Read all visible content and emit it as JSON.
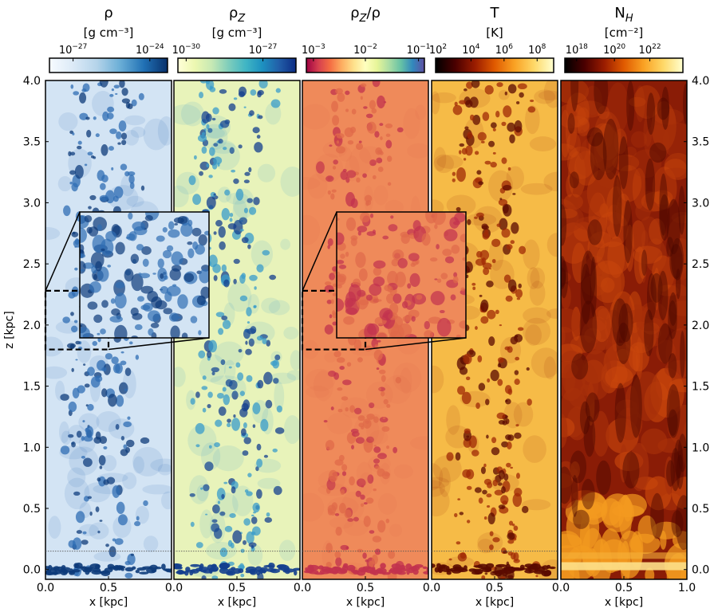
{
  "chart_data": {
    "type": "heatmap",
    "shared_axes": {
      "xlabel": "x [kpc]",
      "ylabel": "z [kpc]",
      "xlim": [
        0.0,
        1.0
      ],
      "ylim": [
        -0.08,
        4.0
      ],
      "x_ticks": [
        "0.0",
        "0.5"
      ],
      "x_ticks_last": [
        "0.0",
        "0.5",
        "1.0"
      ],
      "y_ticks": [
        {
          "value": 0.0,
          "label": "0.0"
        },
        {
          "value": 0.5,
          "label": "0.5"
        },
        {
          "value": 1.0,
          "label": "1.0"
        },
        {
          "value": 1.5,
          "label": "1.5"
        },
        {
          "value": 2.0,
          "label": "2.0"
        },
        {
          "value": 2.5,
          "label": "2.5"
        },
        {
          "value": 3.0,
          "label": "3.0"
        },
        {
          "value": 3.5,
          "label": "3.5"
        },
        {
          "value": 4.0,
          "label": "4.0"
        }
      ],
      "reference_line_z": 0.15
    },
    "zoom_box_region": {
      "x": [
        0.0,
        0.5
      ],
      "z": [
        1.8,
        2.28
      ]
    },
    "panels": [
      {
        "title": "ρ",
        "unit": "[g cm⁻³]",
        "colorbar_ticks": [
          {
            "base": "10",
            "exp": "−27",
            "pos": 0.2
          },
          {
            "base": "10",
            "exp": "−24",
            "pos": 0.85
          }
        ],
        "colormap": [
          "#f7fbff",
          "#dceaf7",
          "#b5d4ea",
          "#6aaed6",
          "#2171b5",
          "#08306b"
        ],
        "colors": {
          "background": "#d3e4f4",
          "clump": "#2f6eb4",
          "clump_dark": "#0d3b7a"
        },
        "has_inset": true
      },
      {
        "title": "ρ_Z",
        "unit": "[g cm⁻³]",
        "colorbar_ticks": [
          {
            "base": "10",
            "exp": "−30",
            "pos": 0.07
          },
          {
            "base": "10",
            "exp": "−27",
            "pos": 0.72
          }
        ],
        "colormap": [
          "#ffffd9",
          "#edf8b1",
          "#c7e9b4",
          "#7fcdbb",
          "#41b6c4",
          "#1d91c0",
          "#225ea8",
          "#0c2c84"
        ],
        "colors": {
          "background": "#e8f3ba",
          "clump": "#3a9ccb",
          "clump_dark": "#143f8e"
        },
        "has_inset": false
      },
      {
        "title": "ρ_Z/ρ",
        "unit": "",
        "colorbar_ticks": [
          {
            "base": "10",
            "exp": "−3",
            "pos": 0.06
          },
          {
            "base": "10",
            "exp": "−2",
            "pos": 0.5
          },
          {
            "base": "10",
            "exp": "−1",
            "pos": 0.95
          }
        ],
        "colormap": [
          "#9e0142",
          "#d53e4f",
          "#f46d43",
          "#fdae61",
          "#fee08b",
          "#ffffbf",
          "#e6f598",
          "#abdda4",
          "#66c2a5",
          "#3288bd",
          "#5e4fa2"
        ],
        "colors": {
          "background": "#ef8a5a",
          "clump": "#e06a4a",
          "clump_dark": "#c2324e"
        },
        "has_inset": true
      },
      {
        "title": "T",
        "unit": "[K]",
        "colorbar_ticks": [
          {
            "base": "10",
            "exp": "2",
            "pos": 0.02
          },
          {
            "base": "10",
            "exp": "4",
            "pos": 0.3
          },
          {
            "base": "10",
            "exp": "6",
            "pos": 0.58
          },
          {
            "base": "10",
            "exp": "8",
            "pos": 0.86
          }
        ],
        "colormap": [
          "#000000",
          "#4a0000",
          "#9a1c00",
          "#e05a00",
          "#f9a123",
          "#fed867",
          "#ffffd0"
        ],
        "colors": {
          "background": "#f6bb47",
          "clump": "#a02a05",
          "clump_dark": "#5a0a00"
        },
        "has_inset": false
      },
      {
        "title": "N_H",
        "unit": "[cm⁻²]",
        "colorbar_ticks": [
          {
            "base": "10",
            "exp": "18",
            "pos": 0.1
          },
          {
            "base": "10",
            "exp": "20",
            "pos": 0.42
          },
          {
            "base": "10",
            "exp": "22",
            "pos": 0.72
          }
        ],
        "colormap": [
          "#000000",
          "#4a0000",
          "#9a1c00",
          "#e05a00",
          "#f9a123",
          "#fed867",
          "#ffffd0"
        ],
        "colors": {
          "background": "#8a1c06",
          "clump": "#c8460c",
          "clump_dark": "#4a0700"
        },
        "has_inset": false
      }
    ]
  }
}
